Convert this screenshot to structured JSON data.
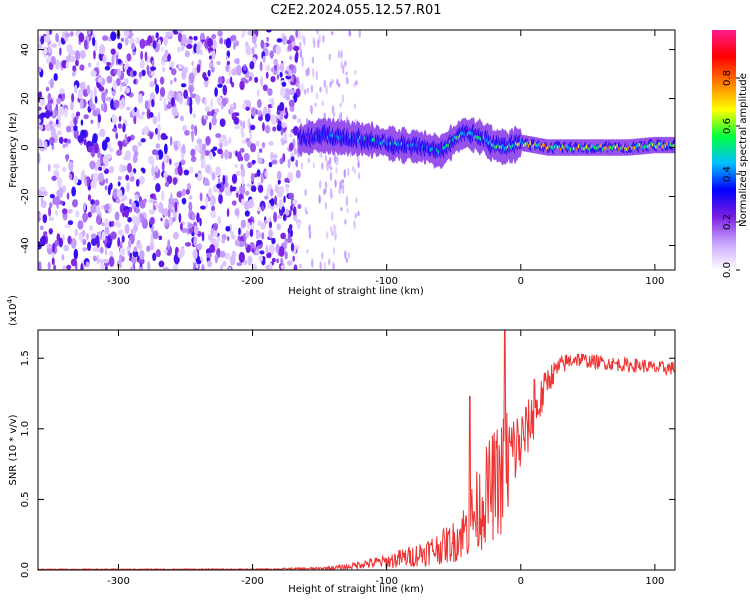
{
  "figure_title": "C2E2.2024.055.12.57.R01",
  "colors": {
    "snr_line": "#ee3333",
    "axis": "#000000"
  },
  "chart_data": [
    {
      "type": "heatmap",
      "xlabel": "Height of straight line (km)",
      "ylabel": "Frequency (Hz)",
      "xlim": [
        -360,
        115
      ],
      "ylim": [
        -50,
        48
      ],
      "x_ticks": [
        -300,
        -200,
        -100,
        0,
        100
      ],
      "x_tick_labels": [
        "-300",
        "-200",
        "-100",
        "0",
        "100"
      ],
      "y_ticks": [
        -40,
        -20,
        0,
        20,
        40
      ],
      "y_tick_labels": [
        "-40",
        "-20",
        "0",
        "20",
        "40"
      ],
      "colorbar": {
        "label": "Normalized spectral amplitude",
        "range": [
          0.0,
          1.0
        ],
        "ticks": [
          0.0,
          0.2,
          0.4,
          0.6,
          0.8
        ],
        "tick_labels": [
          "0.0",
          "0.2",
          "0.4",
          "0.6",
          "0.8"
        ],
        "colormap": [
          "#ffffff",
          "#c9a6ff",
          "#7a1fe0",
          "#0000ff",
          "#00bfff",
          "#00ff40",
          "#ffff00",
          "#ff8000",
          "#ff0000",
          "#ff1a8c"
        ]
      },
      "noise_region_x": [
        -360,
        -165
      ],
      "signal_track": {
        "x": [
          -165,
          -150,
          -130,
          -110,
          -90,
          -70,
          -60,
          -50,
          -42,
          -35,
          -28,
          -20,
          -10,
          0,
          20,
          40,
          60,
          80,
          100,
          115
        ],
        "center_hz": [
          3,
          5,
          4,
          3,
          1,
          0,
          -2,
          3,
          6,
          5,
          4,
          1,
          0,
          2,
          0,
          0,
          0,
          0,
          1,
          1
        ],
        "amplitude": [
          0.3,
          0.4,
          0.45,
          0.5,
          0.5,
          0.5,
          0.55,
          0.55,
          0.6,
          0.6,
          0.55,
          0.65,
          0.7,
          0.7,
          0.8,
          0.75,
          0.75,
          0.8,
          0.75,
          0.7
        ]
      }
    },
    {
      "type": "line",
      "xlabel": "Height of straight line (km)",
      "ylabel": "SNR (10 * v/v)",
      "y_multiplier": "(x10",
      "y_multiplier_exp": "4",
      "y_multiplier_close": ")",
      "xlim": [
        -360,
        115
      ],
      "ylim": [
        0.0,
        1.7
      ],
      "x_ticks": [
        -300,
        -200,
        -100,
        0,
        100
      ],
      "x_tick_labels": [
        "-300",
        "-200",
        "-100",
        "0",
        "100"
      ],
      "y_ticks": [
        0.0,
        0.5,
        1.0,
        1.5
      ],
      "y_tick_labels": [
        "0.0",
        "0.5",
        "1.0",
        "1.5"
      ],
      "series": [
        {
          "x": [
            -360,
            -300,
            -200,
            -150,
            -130,
            -120,
            -100,
            -90,
            -80,
            -70,
            -60,
            -50,
            -45,
            -40,
            -35,
            -30,
            -25,
            -20,
            -15,
            -12,
            -10,
            -8,
            -5,
            0,
            5,
            10,
            15,
            20,
            30,
            40,
            50,
            60,
            70,
            80,
            90,
            100,
            115
          ],
          "y": [
            0.005,
            0.005,
            0.005,
            0.01,
            0.02,
            0.04,
            0.06,
            0.08,
            0.1,
            0.13,
            0.16,
            0.2,
            0.25,
            0.3,
            0.38,
            0.45,
            0.55,
            0.6,
            0.65,
            0.7,
            0.75,
            0.8,
            0.85,
            0.9,
            1.0,
            1.1,
            1.2,
            1.35,
            1.45,
            1.5,
            1.48,
            1.47,
            1.46,
            1.45,
            1.45,
            1.43,
            1.43
          ],
          "noise_amp": [
            0.003,
            0.003,
            0.004,
            0.01,
            0.02,
            0.03,
            0.05,
            0.07,
            0.08,
            0.1,
            0.12,
            0.15,
            0.18,
            0.22,
            0.28,
            0.32,
            0.35,
            0.4,
            0.42,
            0.45,
            0.45,
            0.4,
            0.3,
            0.25,
            0.2,
            0.18,
            0.15,
            0.1,
            0.07,
            0.06,
            0.05,
            0.05,
            0.05,
            0.05,
            0.05,
            0.05,
            0.05
          ],
          "peaks": [
            [
              -38,
              1.23
            ],
            [
              -12,
              1.7
            ],
            [
              10,
              1.35
            ]
          ]
        }
      ]
    }
  ]
}
